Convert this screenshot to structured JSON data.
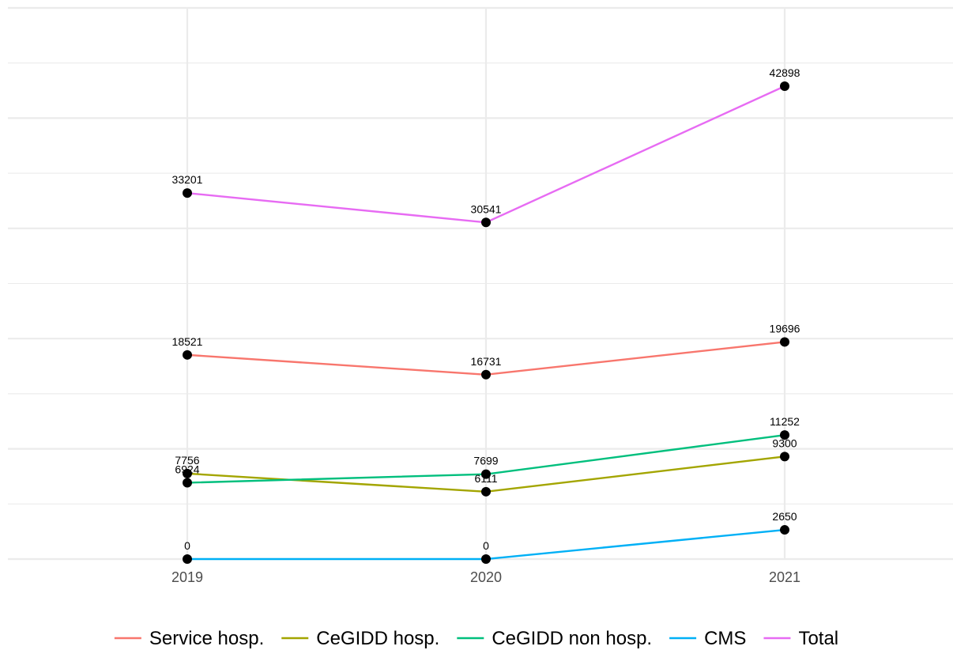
{
  "chart_data": {
    "type": "line",
    "title": "",
    "xlabel": "",
    "ylabel": "",
    "x": [
      "2019",
      "2020",
      "2021"
    ],
    "ylim": [
      0,
      50000
    ],
    "grid": true,
    "legend_position": "bottom",
    "point_color": "#000000",
    "series": [
      {
        "name": "Service hosp.",
        "color": "#F8766D",
        "values": [
          18521,
          16731,
          19696
        ],
        "labels": [
          "18521",
          "16731",
          "19696"
        ]
      },
      {
        "name": "CeGIDD hosp.",
        "color": "#A3A500",
        "values": [
          7756,
          6111,
          9300
        ],
        "labels": [
          "7756",
          "6111",
          "9300"
        ]
      },
      {
        "name": "CeGIDD non hosp.",
        "color": "#00BF7D",
        "values": [
          6924,
          7699,
          11252
        ],
        "labels": [
          "6924",
          "7699",
          "11252"
        ]
      },
      {
        "name": "CMS",
        "color": "#00B0F6",
        "values": [
          0,
          0,
          2650
        ],
        "labels": [
          "0",
          "0",
          "2650"
        ]
      },
      {
        "name": "Total",
        "color": "#E76BF3",
        "values": [
          33201,
          30541,
          42898
        ],
        "labels": [
          "33201",
          "30541",
          "42898"
        ]
      }
    ]
  }
}
